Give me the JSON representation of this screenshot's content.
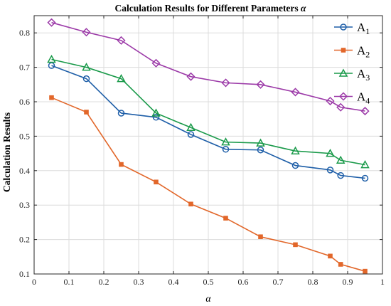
{
  "chart_data": {
    "type": "line",
    "title": "Calculation Results for Different Parameters",
    "title_symbol": "α",
    "xlabel": "α",
    "ylabel": "Calculation Results",
    "xlim": [
      0,
      1
    ],
    "ylim": [
      0.1,
      0.85
    ],
    "xticks": [
      0,
      0.1,
      0.2,
      0.3,
      0.4,
      0.5,
      0.6,
      0.7,
      0.8,
      0.9,
      1
    ],
    "xtick_labels": [
      "0",
      "0.1",
      "0.2",
      "0.3",
      "0.4",
      "0.5",
      "0.6",
      "0.7",
      "0.8",
      "0.9",
      "1"
    ],
    "yticks": [
      0.1,
      0.2,
      0.3,
      0.4,
      0.5,
      0.6,
      0.7,
      0.8
    ],
    "ytick_labels": [
      "0.1",
      "0.2",
      "0.3",
      "0.4",
      "0.5",
      "0.6",
      "0.7",
      "0.8"
    ],
    "grid": true,
    "legend_position": "top-right",
    "x": [
      0.05,
      0.15,
      0.25,
      0.35,
      0.45,
      0.55,
      0.65,
      0.75,
      0.85,
      0.88,
      0.95
    ],
    "series": [
      {
        "name": "A",
        "sub": "1",
        "color": "#1f5fa8",
        "marker": "circle",
        "values": [
          0.705,
          0.667,
          0.567,
          0.555,
          0.505,
          0.462,
          0.46,
          0.415,
          0.402,
          0.386,
          0.378
        ]
      },
      {
        "name": "A",
        "sub": "2",
        "color": "#e2672a",
        "marker": "square",
        "values": [
          0.612,
          0.57,
          0.418,
          0.367,
          0.303,
          0.262,
          0.208,
          0.185,
          0.152,
          0.128,
          0.108
        ]
      },
      {
        "name": "A",
        "sub": "3",
        "color": "#1a9a4a",
        "marker": "triangle",
        "values": [
          0.723,
          0.7,
          0.667,
          0.567,
          0.525,
          0.483,
          0.48,
          0.457,
          0.45,
          0.43,
          0.417
        ]
      },
      {
        "name": "A",
        "sub": "4",
        "color": "#9c3aa8",
        "marker": "diamond",
        "values": [
          0.83,
          0.802,
          0.778,
          0.712,
          0.673,
          0.655,
          0.65,
          0.628,
          0.602,
          0.584,
          0.573
        ]
      }
    ]
  }
}
